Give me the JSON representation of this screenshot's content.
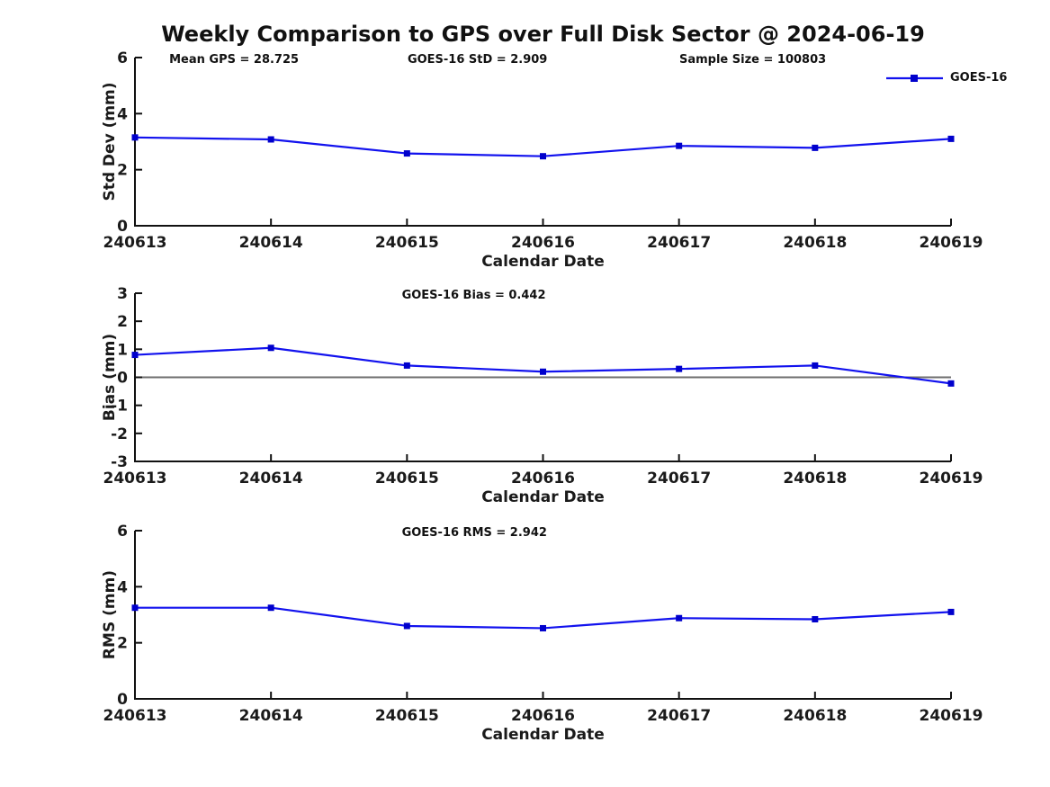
{
  "title": "Weekly Comparison to GPS over Full Disk Sector @ 2024-06-19",
  "legend": {
    "label": "GOES-16"
  },
  "colors": {
    "line": "#1212ee",
    "marker": "#0000cc",
    "axis": "#111111",
    "text": "#1a1a1a",
    "zero_line": "#6e6e6e"
  },
  "chart_data": [
    {
      "type": "line",
      "ylabel": "Std Dev (mm)",
      "xlabel": "Calendar Date",
      "categories": [
        "240613",
        "240614",
        "240615",
        "240616",
        "240617",
        "240618",
        "240619"
      ],
      "ylim": [
        0,
        6
      ],
      "yticks": [
        0,
        2,
        4,
        6
      ],
      "grid": false,
      "zero_line": false,
      "legend_position": "top-right",
      "series": [
        {
          "name": "GOES-16",
          "values": [
            3.15,
            3.08,
            2.58,
            2.48,
            2.85,
            2.78,
            3.1
          ]
        }
      ],
      "annotations": [
        {
          "text": "Mean GPS = 28.725",
          "fx": 0.042
        },
        {
          "text": "GOES-16 StD = 2.909",
          "fx": 0.334
        },
        {
          "text": "Sample Size = 100803",
          "fx": 0.667
        }
      ]
    },
    {
      "type": "line",
      "ylabel": "Bias (mm)",
      "xlabel": "Calendar Date",
      "categories": [
        "240613",
        "240614",
        "240615",
        "240616",
        "240617",
        "240618",
        "240619"
      ],
      "ylim": [
        -3,
        3
      ],
      "yticks": [
        -3,
        -2,
        -1,
        0,
        1,
        2,
        3
      ],
      "grid": false,
      "zero_line": true,
      "series": [
        {
          "name": "GOES-16",
          "values": [
            0.8,
            1.05,
            0.42,
            0.2,
            0.3,
            0.42,
            -0.22
          ]
        }
      ],
      "annotations": [
        {
          "text": "GOES-16 Bias  = 0.442",
          "fx": 0.327
        }
      ]
    },
    {
      "type": "line",
      "ylabel": "RMS (mm)",
      "xlabel": "Calendar Date",
      "categories": [
        "240613",
        "240614",
        "240615",
        "240616",
        "240617",
        "240618",
        "240619"
      ],
      "ylim": [
        0,
        6
      ],
      "yticks": [
        0,
        2,
        4,
        6
      ],
      "grid": false,
      "zero_line": false,
      "series": [
        {
          "name": "GOES-16",
          "values": [
            3.25,
            3.25,
            2.6,
            2.52,
            2.88,
            2.84,
            3.1
          ]
        }
      ],
      "annotations": [
        {
          "text": "GOES-16 RMS = 2.942",
          "fx": 0.327
        }
      ]
    }
  ]
}
